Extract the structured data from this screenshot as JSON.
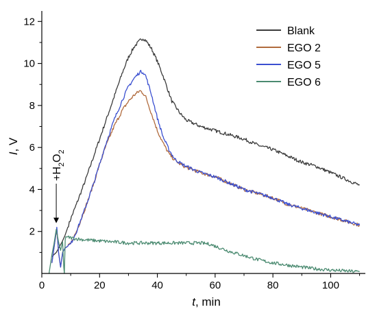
{
  "chart_data": {
    "type": "line",
    "xlabel": {
      "var": "t",
      "unit": ", min"
    },
    "ylabel": {
      "var": "I",
      "unit": ", V"
    },
    "xlim": [
      0,
      112
    ],
    "ylim": [
      0,
      12.5
    ],
    "xticks": [
      0,
      20,
      40,
      60,
      80,
      100
    ],
    "yticks": [
      2,
      4,
      6,
      8,
      10,
      12
    ],
    "grid": false,
    "legend_position": "top-right",
    "annotation": {
      "text_main": "+H",
      "text_sub1": "2",
      "text_mid": "O",
      "text_sub2": "2",
      "arrow_to": [
        5,
        2.2
      ]
    },
    "series": [
      {
        "name": "Blank",
        "color": "#3a3a3a",
        "x": [
          3.5,
          5,
          7,
          8,
          10,
          12,
          15,
          18,
          20,
          22,
          25,
          28,
          30,
          32,
          34,
          35,
          36,
          38,
          40,
          42,
          44,
          45,
          48,
          50,
          55,
          60,
          65,
          70,
          75,
          80,
          85,
          90,
          95,
          100,
          105,
          110
        ],
        "y": [
          0.8,
          1.0,
          1.5,
          1.8,
          2.6,
          3.3,
          4.4,
          5.6,
          6.4,
          7.2,
          8.4,
          9.6,
          10.3,
          10.8,
          11.1,
          11.2,
          11.1,
          10.7,
          10.1,
          9.4,
          8.6,
          8.2,
          7.6,
          7.3,
          7.0,
          6.8,
          6.6,
          6.4,
          6.1,
          5.9,
          5.6,
          5.3,
          5.1,
          4.8,
          4.5,
          4.2
        ]
      },
      {
        "name": "EGO 2",
        "color": "#b06a3c",
        "x": [
          3.5,
          4.5,
          5.2,
          5.8,
          6.5,
          7.2,
          8,
          10,
          12,
          15,
          18,
          20,
          22,
          25,
          28,
          30,
          32,
          34,
          35,
          36,
          38,
          40,
          42,
          44,
          46,
          48,
          50,
          55,
          60,
          65,
          70,
          75,
          80,
          85,
          90,
          95,
          100,
          105,
          110
        ],
        "y": [
          0.5,
          1.5,
          2.1,
          1.0,
          0.3,
          1.0,
          1.2,
          1.4,
          2.0,
          3.1,
          4.3,
          5.2,
          6.0,
          7.0,
          7.8,
          8.2,
          8.5,
          8.7,
          8.6,
          8.4,
          7.6,
          6.8,
          6.2,
          5.7,
          5.4,
          5.2,
          5.05,
          4.8,
          4.6,
          4.3,
          4.0,
          3.8,
          3.6,
          3.3,
          3.1,
          2.9,
          2.7,
          2.5,
          2.3
        ]
      },
      {
        "name": "EGO 5",
        "color": "#3a4fd0",
        "x": [
          3.5,
          4.5,
          5.2,
          5.8,
          6.5,
          7.2,
          8,
          10,
          12,
          15,
          18,
          20,
          22,
          25,
          28,
          30,
          32,
          34,
          35,
          36,
          38,
          40,
          42,
          44,
          46,
          48,
          50,
          55,
          60,
          65,
          70,
          75,
          80,
          85,
          90,
          95,
          100,
          105,
          110
        ],
        "y": [
          0.5,
          1.5,
          2.2,
          1.0,
          0.3,
          1.0,
          1.2,
          1.4,
          2.0,
          3.1,
          4.3,
          5.2,
          6.1,
          7.3,
          8.3,
          8.9,
          9.3,
          9.6,
          9.6,
          9.4,
          8.5,
          7.4,
          6.5,
          5.9,
          5.45,
          5.25,
          5.1,
          4.8,
          4.6,
          4.3,
          4.0,
          3.8,
          3.6,
          3.3,
          3.1,
          2.9,
          2.7,
          2.5,
          2.3
        ]
      },
      {
        "name": "EGO 6",
        "color": "#4a8a70",
        "x": [
          2.5,
          3.5,
          4.2,
          5,
          5.8,
          6.5,
          7.2,
          7.6,
          7.8,
          8.1,
          8.3,
          10,
          12,
          15,
          20,
          25,
          30,
          35,
          40,
          45,
          50,
          55,
          58,
          60,
          65,
          70,
          75,
          80,
          85,
          90,
          95,
          100,
          105,
          110
        ],
        "y": [
          0.0,
          0.9,
          1.4,
          2.1,
          1.5,
          1.1,
          1.5,
          0.3,
          0.0,
          1.6,
          1.75,
          1.7,
          1.65,
          1.6,
          1.55,
          1.5,
          1.45,
          1.45,
          1.45,
          1.45,
          1.45,
          1.45,
          1.4,
          1.3,
          1.05,
          0.85,
          0.65,
          0.5,
          0.4,
          0.3,
          0.22,
          0.16,
          0.12,
          0.08
        ]
      }
    ]
  }
}
